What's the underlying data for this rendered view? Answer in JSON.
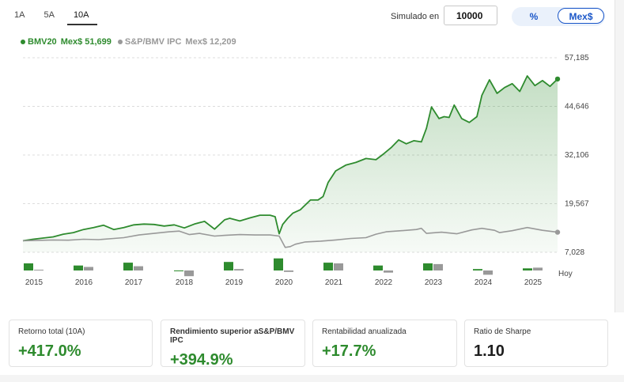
{
  "tabs": [
    "1A",
    "5A",
    "10A"
  ],
  "active_tab": "10A",
  "simulator": {
    "label": "Simulado en",
    "value": "10000"
  },
  "toggle": {
    "options": [
      "%",
      "Mex$"
    ],
    "selected": "Mex$"
  },
  "legend": [
    {
      "name": "BMV20",
      "value": "Mex$ 51,699",
      "color": "#2e8b2e"
    },
    {
      "name": "S&P/BMV IPC",
      "value": "Mex$ 12,209",
      "color": "#999999"
    }
  ],
  "cards": [
    {
      "title": "Retorno total (10A)",
      "value": "+417.0%",
      "color": "#2e8b2e"
    },
    {
      "title": "Rendimiento superior aS&P/BMV IPC",
      "value": "+394.9%",
      "color": "#2e8b2e"
    },
    {
      "title": "Rentabilidad anualizada",
      "value": "+17.7%",
      "color": "#2e8b2e"
    },
    {
      "title": "Ratio de Sharpe",
      "value": "1.10",
      "color": "#1e1e1e"
    }
  ],
  "chart_data": {
    "type": "line",
    "y_ticks": [
      "57,185",
      "44,646",
      "32,106",
      "19,567",
      "7,028"
    ],
    "ylim": [
      7028,
      57185
    ],
    "x_ticks": [
      "2015",
      "2016",
      "2017",
      "2018",
      "2019",
      "2020",
      "2021",
      "2022",
      "2023",
      "2024",
      "2025",
      "Hoy"
    ],
    "xlim": [
      2015.0,
      2025.6
    ],
    "grid": true,
    "series": [
      {
        "name": "BMV20",
        "color": "#2e8b2e",
        "fill": true,
        "x": [
          2015.0,
          2015.2,
          2015.4,
          2015.6,
          2015.8,
          2016.0,
          2016.2,
          2016.4,
          2016.6,
          2016.8,
          2017.0,
          2017.2,
          2017.4,
          2017.6,
          2017.8,
          2018.0,
          2018.2,
          2018.4,
          2018.6,
          2018.8,
          2019.0,
          2019.1,
          2019.3,
          2019.5,
          2019.7,
          2019.9,
          2020.0,
          2020.08,
          2020.15,
          2020.25,
          2020.35,
          2020.5,
          2020.7,
          2020.85,
          2020.95,
          2021.05,
          2021.2,
          2021.4,
          2021.6,
          2021.8,
          2022.0,
          2022.15,
          2022.3,
          2022.45,
          2022.6,
          2022.75,
          2022.9,
          2023.0,
          2023.1,
          2023.25,
          2023.35,
          2023.45,
          2023.55,
          2023.7,
          2023.85,
          2024.0,
          2024.1,
          2024.25,
          2024.4,
          2024.55,
          2024.7,
          2024.85,
          2025.0,
          2025.15,
          2025.3,
          2025.45,
          2025.6
        ],
        "y": [
          10000,
          10400,
          10700,
          11000,
          11700,
          12100,
          12900,
          13400,
          14000,
          12900,
          13400,
          14100,
          14300,
          14200,
          13800,
          14100,
          13300,
          14300,
          15000,
          13000,
          15400,
          15800,
          15100,
          15900,
          16600,
          16600,
          16200,
          11800,
          14200,
          15800,
          17100,
          18000,
          20500,
          20500,
          21400,
          25000,
          28000,
          29500,
          30200,
          31200,
          30900,
          32400,
          34000,
          36000,
          35000,
          35800,
          35500,
          39000,
          44500,
          41500,
          42000,
          41800,
          45000,
          41500,
          40500,
          42000,
          47500,
          51500,
          48000,
          49500,
          50500,
          48500,
          52500,
          50000,
          51300,
          49800,
          51699
        ]
      },
      {
        "name": "S&P/BMV IPC",
        "color": "#999999",
        "fill": false,
        "x": [
          2015.0,
          2015.3,
          2015.6,
          2015.9,
          2016.2,
          2016.5,
          2016.8,
          2017.0,
          2017.3,
          2017.6,
          2017.9,
          2018.1,
          2018.3,
          2018.5,
          2018.8,
          2019.0,
          2019.3,
          2019.6,
          2019.9,
          2020.08,
          2020.2,
          2020.3,
          2020.4,
          2020.6,
          2020.9,
          2021.2,
          2021.5,
          2021.8,
          2022.0,
          2022.2,
          2022.5,
          2022.8,
          2022.9,
          2023.0,
          2023.3,
          2023.6,
          2023.9,
          2024.1,
          2024.35,
          2024.45,
          2024.7,
          2025.0,
          2025.3,
          2025.6
        ],
        "y": [
          10000,
          10100,
          10200,
          10150,
          10400,
          10300,
          10600,
          10800,
          11500,
          11900,
          12300,
          12500,
          11600,
          11900,
          11200,
          11400,
          11600,
          11500,
          11500,
          11200,
          8300,
          8500,
          9100,
          9700,
          9900,
          10200,
          10600,
          10800,
          11700,
          12300,
          12600,
          12900,
          13200,
          11900,
          12200,
          11800,
          12800,
          13200,
          12700,
          12100,
          12600,
          13400,
          12700,
          12209
        ]
      }
    ],
    "annual_bars": [
      {
        "year": "2015",
        "bmv20": 10,
        "ipc": 1
      },
      {
        "year": "2016",
        "bmv20": 7,
        "ipc": 5
      },
      {
        "year": "2017",
        "bmv20": 11,
        "ipc": 6
      },
      {
        "year": "2018",
        "bmv20": -1,
        "ipc": -8
      },
      {
        "year": "2019",
        "bmv20": 12,
        "ipc": 2
      },
      {
        "year": "2020",
        "bmv20": 17,
        "ipc": -2
      },
      {
        "year": "2021",
        "bmv20": 11,
        "ipc": 10
      },
      {
        "year": "2022",
        "bmv20": 7,
        "ipc": -3
      },
      {
        "year": "2023",
        "bmv20": 10,
        "ipc": 9
      },
      {
        "year": "2024",
        "bmv20": 2,
        "ipc": -6
      },
      {
        "year": "2025",
        "bmv20": 3,
        "ipc": 4
      }
    ]
  }
}
